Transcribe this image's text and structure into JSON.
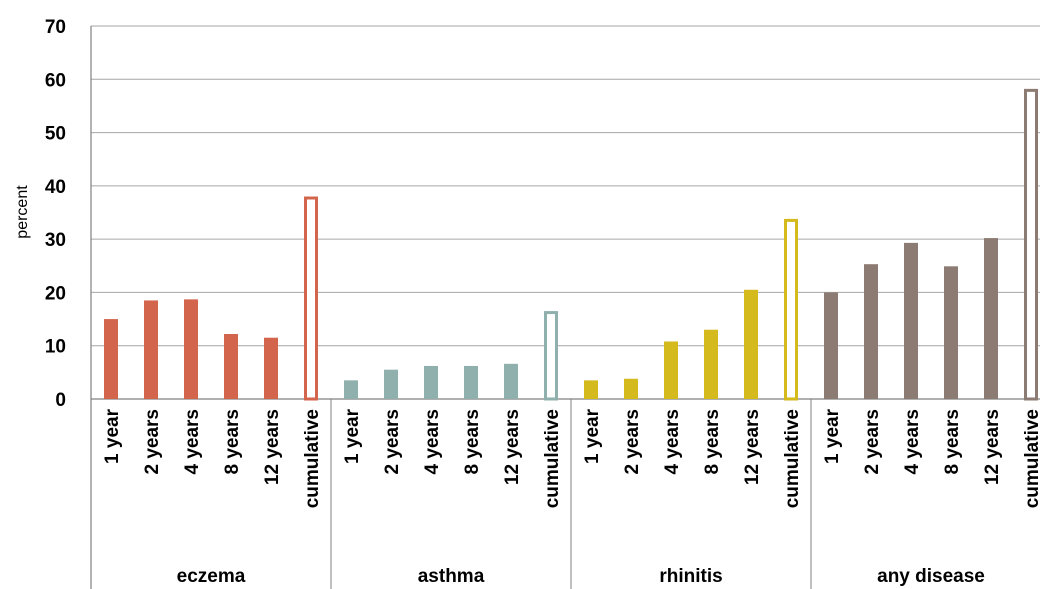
{
  "chart_data": {
    "type": "bar",
    "title": "",
    "ylabel": "percent",
    "ylim": [
      0,
      70
    ],
    "yticks": [
      0,
      10,
      20,
      30,
      40,
      50,
      60,
      70
    ],
    "grid": true,
    "categories": [
      "1 year",
      "2 years",
      "4 years",
      "8 years",
      "12 years",
      "cumulative"
    ],
    "groups": [
      {
        "name": "eczema",
        "color": "#d4654d",
        "values": [
          15,
          18.5,
          18.7,
          12.2,
          11.5,
          38
        ],
        "hollow_last": true
      },
      {
        "name": "asthma",
        "color": "#8fb0ad",
        "values": [
          3.5,
          5.5,
          6.2,
          6.2,
          6.6,
          16.5
        ],
        "hollow_last": true
      },
      {
        "name": "rhinitis",
        "color": "#d4ba1c",
        "values": [
          3.5,
          3.8,
          10.8,
          13,
          20.5,
          33.8
        ],
        "hollow_last": true
      },
      {
        "name": "any disease",
        "color": "#8c7b72",
        "values": [
          20,
          25.3,
          29.3,
          24.9,
          30.2,
          58.2
        ],
        "hollow_last": true
      }
    ]
  }
}
